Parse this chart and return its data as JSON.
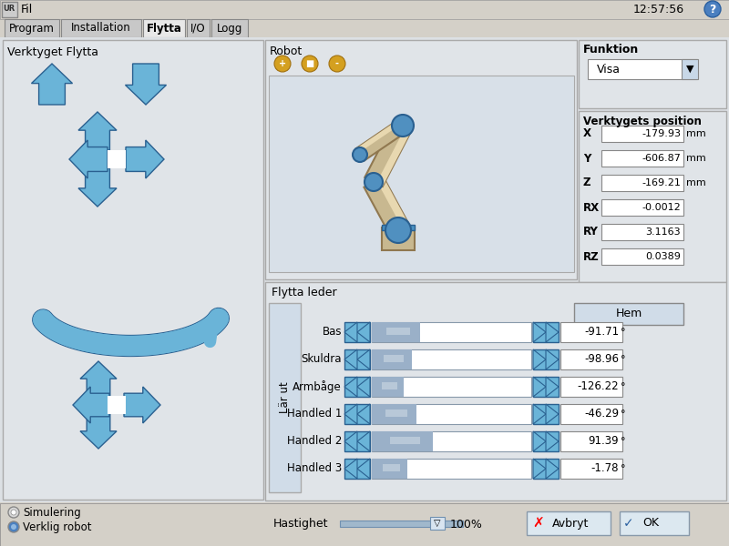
{
  "title": "Fil",
  "time": "12:57:56",
  "tabs": [
    "Program",
    "Installation",
    "Flytta",
    "I/O",
    "Logg"
  ],
  "active_tab": "Flytta",
  "bg_color": "#d4d0c8",
  "panel_bg": "#e0e4e8",
  "light_blue_arrow": "#6ab4d8",
  "arrow_edge": "#3a7aaa",
  "left_panel_title": "Verktyget Flytta",
  "dropdown_label": "Visa",
  "position_title": "Verktygets position",
  "position_labels": [
    "X",
    "Y",
    "Z",
    "RX",
    "RY",
    "RZ"
  ],
  "position_values": [
    "-179.93",
    "-606.87",
    "-169.21",
    "-0.0012",
    "3.1163",
    "0.0389"
  ],
  "position_units": [
    "mm",
    "mm",
    "mm",
    "",
    "",
    ""
  ],
  "joint_labels": [
    "Bas",
    "Skuldra",
    "Armbåge",
    "Handled 1",
    "Handled 2",
    "Handled 3"
  ],
  "joint_values": [
    "-91.71",
    "-98.96",
    "-126.22",
    "-46.29",
    "91.39",
    "-1.78"
  ],
  "joint_bar_fills": [
    0.3,
    0.25,
    0.2,
    0.28,
    0.38,
    0.22
  ],
  "home_btn": "Hem",
  "larut_label": "Lär ut",
  "speed_label": "Hastighet",
  "speed_value": "100%",
  "cancel_btn": "Avbryt",
  "ok_btn": "OK",
  "sim_label": "Simulering",
  "robot_label": "Verklig robot"
}
